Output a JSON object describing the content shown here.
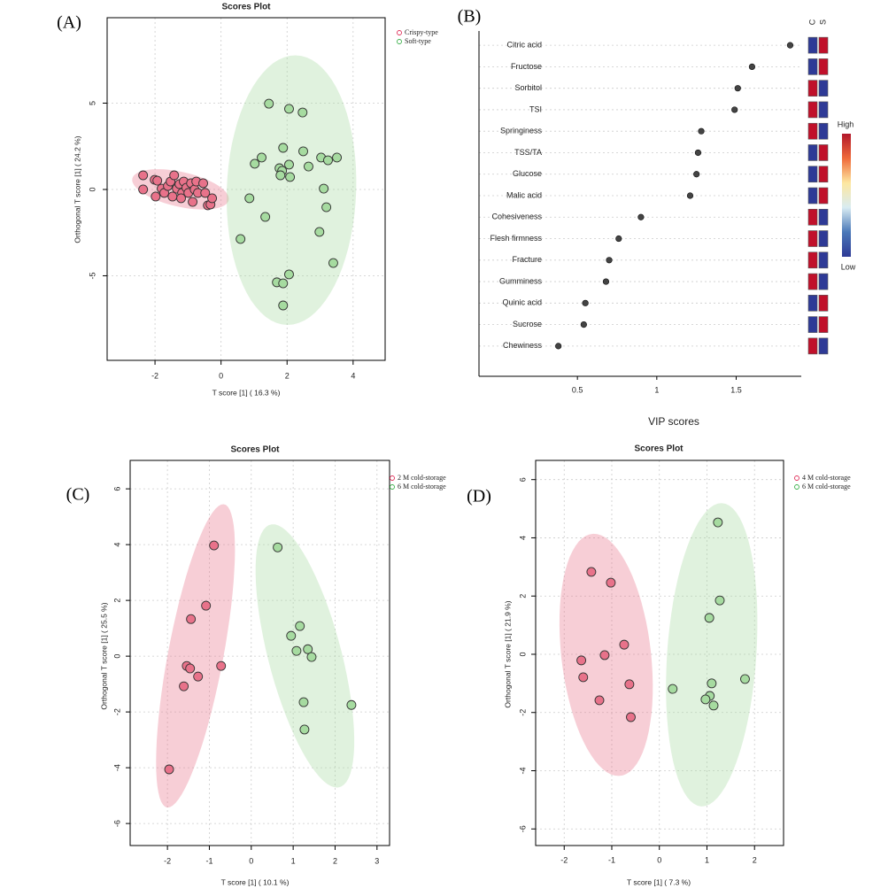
{
  "chart_data": [
    {
      "type": "scatter",
      "panel_label": "(A)",
      "title": "Scores Plot",
      "xlabel": "T score [1] ( 16.3 %)",
      "ylabel": "Orthogonal T score [1] ( 24.2 %)",
      "xlim": [
        -3.45,
        4.97
      ],
      "ylim": [
        -9.9,
        9.95
      ],
      "xticks": [
        -2,
        0,
        2,
        4
      ],
      "yticks": [
        -5,
        0,
        5
      ],
      "grid": true,
      "legend": "top-right",
      "series": [
        {
          "name": "Crispy-type",
          "color": "#e0305a",
          "fill": "#e8728a",
          "x": [
            -2.36,
            -2.36,
            -2.01,
            -1.93,
            -1.8,
            -1.72,
            -1.98,
            -1.61,
            -1.53,
            -1.42,
            -1.34,
            -1.26,
            -1.18,
            -1.13,
            -1.05,
            -0.99,
            -0.91,
            -0.86,
            -0.8,
            -0.75,
            -0.7,
            -0.54,
            -0.48,
            -0.4,
            -0.32,
            -0.27,
            -1.47,
            -1.21
          ],
          "values": [
            0.82,
            0,
            0.56,
            0.51,
            0.05,
            -0.2,
            -0.41,
            0.2,
            0.46,
            0.82,
            0.05,
            0.31,
            -0.2,
            0.46,
            0.1,
            -0.2,
            0.36,
            -0.72,
            0,
            0.46,
            -0.2,
            0.36,
            -0.2,
            -0.92,
            -0.87,
            -0.51,
            -0.41,
            -0.51
          ]
        },
        {
          "name": "Soft-type",
          "color": "#3bb04a",
          "fill": "#a6dba0",
          "x": [
            1.45,
            2.06,
            2.47,
            1.88,
            2.49,
            1.23,
            1.02,
            2.06,
            2.65,
            3.03,
            3.24,
            3.51,
            1.77,
            1.85,
            1.8,
            2.09,
            3.11,
            0.86,
            3.19,
            1.34,
            2.98,
            0.59,
            3.4,
            2.06,
            1.69,
            1.88,
            1.88
          ],
          "values": [
            4.97,
            4.67,
            4.46,
            2.41,
            2.21,
            1.85,
            1.49,
            1.44,
            1.33,
            1.85,
            1.69,
            1.85,
            1.23,
            1.08,
            0.82,
            0.72,
            0.05,
            -0.51,
            -1.03,
            -1.59,
            -2.46,
            -2.87,
            -4.26,
            -4.92,
            -5.38,
            -5.44,
            -6.72
          ]
        }
      ]
    },
    {
      "type": "dot",
      "panel_label": "(B)",
      "xlabel": "VIP scores",
      "categories": [
        "Citric acid",
        "Fructose",
        "Sorbitol",
        "TSI",
        "Springiness",
        "TSS/TA",
        "Glucose",
        "Malic acid",
        "Cohesiveness",
        "Flesh firmness",
        "Fracture",
        "Gumminess",
        "Quinic acid",
        "Sucrose",
        "Chewiness"
      ],
      "values": [
        1.84,
        1.6,
        1.51,
        1.49,
        1.28,
        1.26,
        1.25,
        1.21,
        0.9,
        0.76,
        0.7,
        0.68,
        0.55,
        0.54,
        0.38
      ],
      "color": "#444444",
      "xlim": [
        -0.12,
        1.91
      ],
      "xticks": [
        0.5,
        1.0,
        1.5
      ],
      "grid": true,
      "heatmap_columns": [
        "C",
        "S"
      ],
      "cell_colors": [
        [
          "#2e3a96",
          "#c0102a"
        ],
        [
          "#2e3a96",
          "#c0102a"
        ],
        [
          "#c0102a",
          "#2e3a96"
        ],
        [
          "#c0102a",
          "#2e3a96"
        ],
        [
          "#c0102a",
          "#2e3a96"
        ],
        [
          "#2e3a96",
          "#c0102a"
        ],
        [
          "#2e3a96",
          "#c0102a"
        ],
        [
          "#2e3a96",
          "#c0102a"
        ],
        [
          "#c0102a",
          "#2e3a96"
        ],
        [
          "#c0102a",
          "#2e3a96"
        ],
        [
          "#c0102a",
          "#2e3a96"
        ],
        [
          "#c0102a",
          "#2e3a96"
        ],
        [
          "#2e3a96",
          "#c0102a"
        ],
        [
          "#2e3a96",
          "#c0102a"
        ],
        [
          "#c0102a",
          "#2e3a96"
        ]
      ],
      "colorbar": {
        "high": "High",
        "low": "Low",
        "colors": [
          "#b2182b",
          "#ef6a3a",
          "#fde7a0",
          "#d9ecf2",
          "#4a78b8",
          "#2e3a96"
        ]
      }
    },
    {
      "type": "scatter",
      "panel_label": "(C)",
      "title": "Scores Plot",
      "xlabel": "T score [1] ( 10.1 %)",
      "ylabel": "Orthogonal T score [1] ( 25.5 %)",
      "xlim": [
        -2.89,
        3.3
      ],
      "ylim": [
        -6.79,
        7.02
      ],
      "xticks": [
        -2,
        -1,
        0,
        1,
        2,
        3
      ],
      "yticks": [
        -6,
        -4,
        -2,
        0,
        2,
        4,
        6
      ],
      "grid": true,
      "legend": "top-right",
      "series": [
        {
          "name": "2 M cold-storage",
          "color": "#e0305a",
          "fill": "#e8728a",
          "x": [
            -0.89,
            -1.08,
            -1.44,
            -1.54,
            -1.46,
            -0.72,
            -1.27,
            -1.61,
            -1.96
          ],
          "values": [
            3.97,
            1.81,
            1.33,
            -0.35,
            -0.44,
            -0.35,
            -0.73,
            -1.08,
            -4.06
          ]
        },
        {
          "name": "6 M cold-storage",
          "color": "#3bb04a",
          "fill": "#a6dba0",
          "x": [
            0.63,
            1.16,
            0.95,
            1.08,
            1.35,
            1.44,
            2.39,
            1.25,
            1.27
          ],
          "values": [
            3.9,
            1.08,
            0.73,
            0.19,
            0.25,
            -0.03,
            -1.75,
            -1.65,
            -2.63
          ]
        }
      ]
    },
    {
      "type": "scatter",
      "panel_label": "(D)",
      "title": "Scores Plot",
      "xlabel": "T score [1] ( 7.3 %)",
      "ylabel": "Orthogonal T score [1] ( 21.9 %)",
      "xlim": [
        -2.6,
        2.61
      ],
      "ylim": [
        -6.57,
        6.66
      ],
      "xticks": [
        -2,
        -1,
        0,
        1,
        2
      ],
      "yticks": [
        -6,
        -4,
        -2,
        0,
        2,
        4,
        6
      ],
      "grid": true,
      "legend": "top-right",
      "series": [
        {
          "name": "4 M cold-storage",
          "color": "#e0305a",
          "fill": "#e8728a",
          "x": [
            -1.43,
            -1.02,
            -0.74,
            -1.15,
            -1.64,
            -1.6,
            -0.63,
            -1.26,
            -0.6
          ],
          "values": [
            2.83,
            2.46,
            0.33,
            -0.03,
            -0.21,
            -0.79,
            -1.03,
            -1.58,
            -2.16
          ]
        },
        {
          "name": "6 M cold-storage",
          "color": "#3bb04a",
          "fill": "#a6dba0",
          "x": [
            1.23,
            1.27,
            1.05,
            0.28,
            1.1,
            1.8,
            1.06,
            0.97,
            1.14
          ],
          "values": [
            4.53,
            1.85,
            1.25,
            -1.19,
            -1.0,
            -0.85,
            -1.43,
            -1.55,
            -1.76
          ]
        }
      ]
    }
  ]
}
